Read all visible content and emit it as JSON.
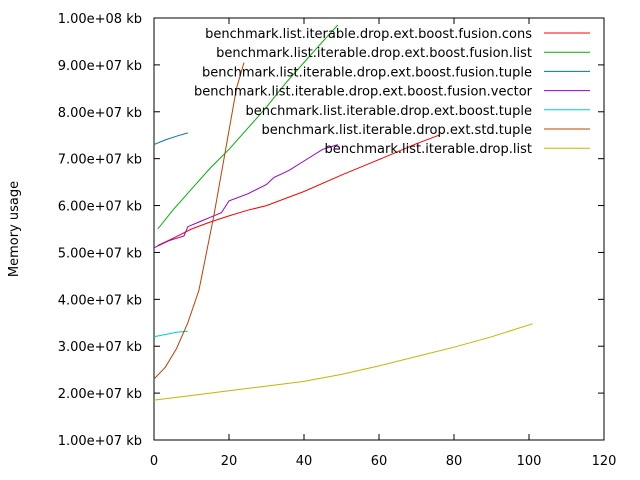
{
  "chart_data": {
    "type": "line",
    "title": "",
    "xlabel": "",
    "ylabel": "Memory usage",
    "xlim": [
      0,
      120
    ],
    "ylim": [
      10000000,
      100000000
    ],
    "grid": false,
    "legend_position": "top-right",
    "x_ticks": [
      {
        "value": 0,
        "label": "0"
      },
      {
        "value": 20,
        "label": "20"
      },
      {
        "value": 40,
        "label": "40"
      },
      {
        "value": 60,
        "label": "60"
      },
      {
        "value": 80,
        "label": "80"
      },
      {
        "value": 100,
        "label": "100"
      },
      {
        "value": 120,
        "label": "120"
      }
    ],
    "y_ticks": [
      {
        "value": 10000000,
        "label": "1.00e+07 kb"
      },
      {
        "value": 20000000,
        "label": "2.00e+07 kb"
      },
      {
        "value": 30000000,
        "label": "3.00e+07 kb"
      },
      {
        "value": 40000000,
        "label": "4.00e+07 kb"
      },
      {
        "value": 50000000,
        "label": "5.00e+07 kb"
      },
      {
        "value": 60000000,
        "label": "6.00e+07 kb"
      },
      {
        "value": 70000000,
        "label": "7.00e+07 kb"
      },
      {
        "value": 80000000,
        "label": "8.00e+07 kb"
      },
      {
        "value": 90000000,
        "label": "9.00e+07 kb"
      },
      {
        "value": 100000000,
        "label": "1.00e+08 kb"
      }
    ],
    "series": [
      {
        "name": "benchmark.list.iterable.drop.ext.boost.fusion.cons",
        "color": "#ff0000",
        "points": [
          [
            1,
            51500000
          ],
          [
            5,
            53000000
          ],
          [
            10,
            55000000
          ],
          [
            15,
            56500000
          ],
          [
            20,
            57800000
          ],
          [
            25,
            59000000
          ],
          [
            30,
            60000000
          ],
          [
            35,
            61500000
          ],
          [
            40,
            63000000
          ],
          [
            50,
            66500000
          ],
          [
            60,
            69800000
          ],
          [
            70,
            73200000
          ],
          [
            76,
            75000000
          ]
        ]
      },
      {
        "name": "benchmark.list.iterable.drop.ext.boost.fusion.list",
        "color": "#00b000",
        "points": [
          [
            1,
            55000000
          ],
          [
            5,
            59000000
          ],
          [
            10,
            63500000
          ],
          [
            15,
            68000000
          ],
          [
            20,
            72000000
          ],
          [
            25,
            76500000
          ],
          [
            30,
            81000000
          ],
          [
            35,
            86000000
          ],
          [
            40,
            90500000
          ],
          [
            45,
            95000000
          ],
          [
            49,
            98500000
          ]
        ]
      },
      {
        "name": "benchmark.list.iterable.drop.ext.boost.fusion.tuple",
        "color": "#0070c0",
        "points": [
          [
            0,
            73000000
          ],
          [
            3,
            74000000
          ],
          [
            6,
            74800000
          ],
          [
            9,
            75500000
          ]
        ]
      },
      {
        "name": "benchmark.list.iterable.drop.ext.boost.fusion.vector",
        "color": "#9900cc",
        "points": [
          [
            0,
            51000000
          ],
          [
            4,
            52500000
          ],
          [
            8,
            53500000
          ],
          [
            9,
            55500000
          ],
          [
            12,
            56500000
          ],
          [
            15,
            57500000
          ],
          [
            18,
            58500000
          ],
          [
            20,
            61000000
          ],
          [
            25,
            62500000
          ],
          [
            30,
            64500000
          ],
          [
            32,
            66000000
          ],
          [
            36,
            67500000
          ],
          [
            40,
            69500000
          ],
          [
            45,
            72000000
          ],
          [
            49,
            73000000
          ]
        ]
      },
      {
        "name": "benchmark.list.iterable.drop.ext.boost.tuple",
        "color": "#00cccc",
        "points": [
          [
            0,
            32000000
          ],
          [
            3,
            32500000
          ],
          [
            6,
            33000000
          ],
          [
            9,
            33200000
          ]
        ]
      },
      {
        "name": "benchmark.list.iterable.drop.ext.std.tuple",
        "color": "#c04000",
        "points": [
          [
            0,
            23000000
          ],
          [
            3,
            25500000
          ],
          [
            6,
            29500000
          ],
          [
            9,
            35000000
          ],
          [
            12,
            42000000
          ],
          [
            14,
            50000000
          ],
          [
            16,
            58000000
          ],
          [
            18,
            67000000
          ],
          [
            20,
            76000000
          ],
          [
            22,
            85000000
          ],
          [
            24,
            90500000
          ]
        ]
      },
      {
        "name": "benchmark.list.iterable.drop.list",
        "color": "#c8b400",
        "points": [
          [
            0,
            18500000
          ],
          [
            10,
            19500000
          ],
          [
            20,
            20500000
          ],
          [
            30,
            21500000
          ],
          [
            40,
            22500000
          ],
          [
            50,
            24000000
          ],
          [
            60,
            25800000
          ],
          [
            70,
            27800000
          ],
          [
            80,
            29800000
          ],
          [
            90,
            32000000
          ],
          [
            101,
            34800000
          ]
        ]
      }
    ]
  }
}
